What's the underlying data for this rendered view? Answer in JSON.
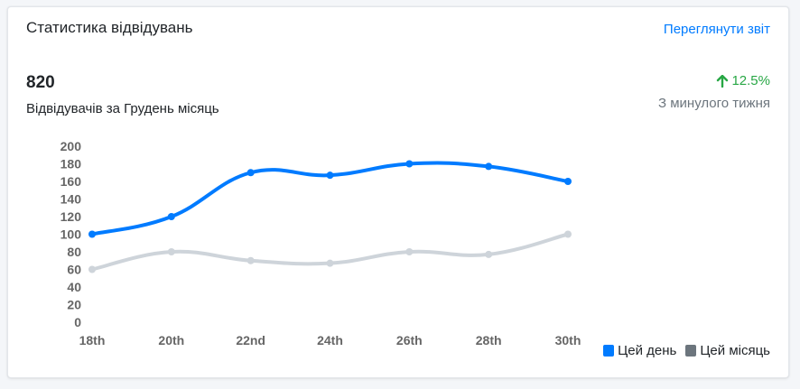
{
  "card": {
    "title": "Статистика відвідувань",
    "report_link": "Переглянути звіт"
  },
  "metric": {
    "value": "820",
    "description": "Відвідувачів за Грудень місяць",
    "change": "12.5%",
    "change_icon": "arrow-up-icon",
    "change_note": "З минулого тижня",
    "change_color": "#28a745"
  },
  "chart_data": {
    "type": "line",
    "categories": [
      "18th",
      "20th",
      "22nd",
      "24th",
      "26th",
      "28th",
      "30th"
    ],
    "ylim": [
      0,
      200
    ],
    "yticks": [
      0,
      20,
      40,
      60,
      80,
      100,
      120,
      140,
      160,
      180,
      200
    ],
    "grid": false,
    "legend_position": "bottom-right",
    "series": [
      {
        "name": "Цей день",
        "values": [
          100,
          120,
          170,
          167,
          180,
          177,
          160
        ],
        "color": "#007bff"
      },
      {
        "name": "Цей місяць",
        "values": [
          60,
          80,
          70,
          67,
          80,
          77,
          100
        ],
        "color": "#ced4da",
        "legend_color": "#6c757d"
      }
    ]
  }
}
